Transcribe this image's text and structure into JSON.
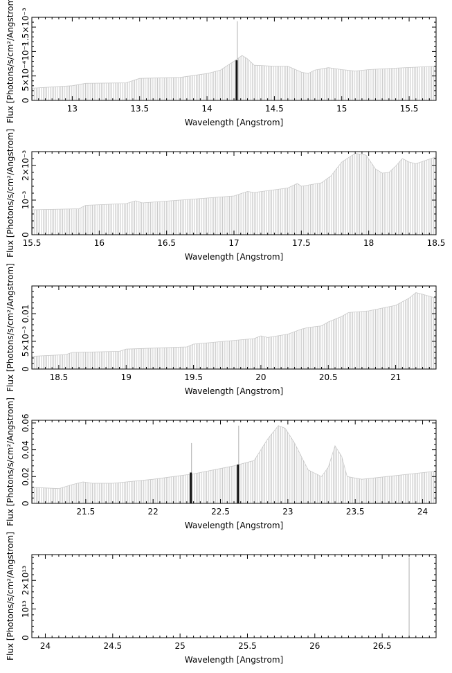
{
  "chart_data": [
    {
      "type": "bar",
      "xlabel": "Wavelength [Angstrom]",
      "ylabel": "Flux [Photons/s/cm²/Angstrom]",
      "xlim": [
        12.7,
        15.7
      ],
      "ylim": [
        0,
        0.0017
      ],
      "xticks": [
        {
          "v": 13,
          "label": "13"
        },
        {
          "v": 13.5,
          "label": "13.5"
        },
        {
          "v": 14,
          "label": "14"
        },
        {
          "v": 14.5,
          "label": "14.5"
        },
        {
          "v": 15,
          "label": "15"
        },
        {
          "v": 15.5,
          "label": "15.5"
        }
      ],
      "yticks": [
        {
          "v": 0,
          "label": "0"
        },
        {
          "v": 0.0005,
          "label": "5×10⁻⁴"
        },
        {
          "v": 0.001,
          "label": "10⁻³"
        },
        {
          "v": 0.0015,
          "label": "1.5×10⁻³"
        }
      ],
      "envelope": [
        [
          12.7,
          0.00025
        ],
        [
          13.0,
          0.0003
        ],
        [
          13.1,
          0.00035
        ],
        [
          13.4,
          0.00036
        ],
        [
          13.5,
          0.00045
        ],
        [
          13.8,
          0.00047
        ],
        [
          14.0,
          0.00055
        ],
        [
          14.1,
          0.00062
        ],
        [
          14.2,
          0.0008
        ],
        [
          14.26,
          0.00092
        ],
        [
          14.3,
          0.00085
        ],
        [
          14.35,
          0.00072
        ],
        [
          14.5,
          0.0007
        ],
        [
          14.6,
          0.0007
        ],
        [
          14.7,
          0.00058
        ],
        [
          14.75,
          0.00055
        ],
        [
          14.8,
          0.00062
        ],
        [
          14.9,
          0.00067
        ],
        [
          15.0,
          0.00063
        ],
        [
          15.1,
          0.0006
        ],
        [
          15.2,
          0.00063
        ],
        [
          15.4,
          0.00066
        ],
        [
          15.7,
          0.0007
        ]
      ],
      "highlights": [
        {
          "x": 14.22,
          "value": 0.00082,
          "peak": 0.00162
        }
      ]
    },
    {
      "type": "bar",
      "xlabel": "Wavelength [Angstrom]",
      "ylabel": "Flux [Photons/s/cm²/Angstrom]",
      "xlim": [
        15.5,
        18.5
      ],
      "ylim": [
        0,
        0.0024
      ],
      "xticks": [
        {
          "v": 15.5,
          "label": "15.5"
        },
        {
          "v": 16,
          "label": "16"
        },
        {
          "v": 16.5,
          "label": "16.5"
        },
        {
          "v": 17,
          "label": "17"
        },
        {
          "v": 17.5,
          "label": "17.5"
        },
        {
          "v": 18,
          "label": "18"
        },
        {
          "v": 18.5,
          "label": "18.5"
        }
      ],
      "yticks": [
        {
          "v": 0,
          "label": "0"
        },
        {
          "v": 0.001,
          "label": "10⁻³"
        },
        {
          "v": 0.002,
          "label": "2×10⁻³"
        }
      ],
      "envelope": [
        [
          15.5,
          0.00072
        ],
        [
          15.85,
          0.00075
        ],
        [
          15.9,
          0.00085
        ],
        [
          16.2,
          0.0009
        ],
        [
          16.27,
          0.00098
        ],
        [
          16.32,
          0.00092
        ],
        [
          16.6,
          0.001
        ],
        [
          17.0,
          0.00112
        ],
        [
          17.1,
          0.00125
        ],
        [
          17.15,
          0.00122
        ],
        [
          17.4,
          0.00135
        ],
        [
          17.47,
          0.00148
        ],
        [
          17.5,
          0.0014
        ],
        [
          17.65,
          0.0015
        ],
        [
          17.72,
          0.0017
        ],
        [
          17.8,
          0.0021
        ],
        [
          17.9,
          0.00235
        ],
        [
          17.98,
          0.0023
        ],
        [
          18.05,
          0.0019
        ],
        [
          18.1,
          0.00178
        ],
        [
          18.15,
          0.0018
        ],
        [
          18.2,
          0.00198
        ],
        [
          18.25,
          0.0022
        ],
        [
          18.3,
          0.0021
        ],
        [
          18.35,
          0.00205
        ],
        [
          18.5,
          0.00225
        ]
      ],
      "highlights": []
    },
    {
      "type": "bar",
      "xlabel": "Wavelength [Angstrom]",
      "ylabel": "Flux [Photons/s/cm²/Angstrom]",
      "xlim": [
        18.3,
        21.3
      ],
      "ylim": [
        0,
        0.015
      ],
      "xticks": [
        {
          "v": 18.5,
          "label": "18.5"
        },
        {
          "v": 19,
          "label": "19"
        },
        {
          "v": 19.5,
          "label": "19.5"
        },
        {
          "v": 20,
          "label": "20"
        },
        {
          "v": 20.5,
          "label": "20.5"
        },
        {
          "v": 21,
          "label": "21"
        }
      ],
      "yticks": [
        {
          "v": 0,
          "label": "0"
        },
        {
          "v": 0.005,
          "label": "5×10⁻³"
        },
        {
          "v": 0.01,
          "label": "0.01"
        }
      ],
      "envelope": [
        [
          18.3,
          0.0023
        ],
        [
          18.55,
          0.0026
        ],
        [
          18.6,
          0.003
        ],
        [
          18.95,
          0.0032
        ],
        [
          19.0,
          0.0036
        ],
        [
          19.45,
          0.004
        ],
        [
          19.5,
          0.0045
        ],
        [
          19.95,
          0.0055
        ],
        [
          20.0,
          0.006
        ],
        [
          20.05,
          0.0057
        ],
        [
          20.2,
          0.0063
        ],
        [
          20.3,
          0.0072
        ],
        [
          20.35,
          0.0075
        ],
        [
          20.45,
          0.0078
        ],
        [
          20.5,
          0.0085
        ],
        [
          20.6,
          0.0095
        ],
        [
          20.65,
          0.0102
        ],
        [
          20.8,
          0.0105
        ],
        [
          21.0,
          0.0115
        ],
        [
          21.1,
          0.0128
        ],
        [
          21.15,
          0.0138
        ],
        [
          21.2,
          0.0135
        ],
        [
          21.3,
          0.0128
        ]
      ],
      "highlights": []
    },
    {
      "type": "bar",
      "xlabel": "Wavelength [Angstrom]",
      "ylabel": "Flux [Photons/s/cm²/Angstrom]",
      "xlim": [
        21.1,
        24.1
      ],
      "ylim": [
        0,
        0.062
      ],
      "xticks": [
        {
          "v": 21.5,
          "label": "21.5"
        },
        {
          "v": 22,
          "label": "22"
        },
        {
          "v": 22.5,
          "label": "22.5"
        },
        {
          "v": 23,
          "label": "23"
        },
        {
          "v": 23.5,
          "label": "23.5"
        },
        {
          "v": 24,
          "label": "24"
        }
      ],
      "yticks": [
        {
          "v": 0,
          "label": "0"
        },
        {
          "v": 0.02,
          "label": "0.02"
        },
        {
          "v": 0.04,
          "label": "0.04"
        },
        {
          "v": 0.06,
          "label": "0.06"
        }
      ],
      "envelope": [
        [
          21.1,
          0.012
        ],
        [
          21.3,
          0.011
        ],
        [
          21.4,
          0.014
        ],
        [
          21.48,
          0.016
        ],
        [
          21.55,
          0.015
        ],
        [
          21.7,
          0.015
        ],
        [
          22.0,
          0.018
        ],
        [
          22.3,
          0.022
        ],
        [
          22.6,
          0.028
        ],
        [
          22.75,
          0.032
        ],
        [
          22.8,
          0.04
        ],
        [
          22.85,
          0.048
        ],
        [
          22.93,
          0.058
        ],
        [
          22.98,
          0.056
        ],
        [
          23.05,
          0.045
        ],
        [
          23.15,
          0.025
        ],
        [
          23.25,
          0.02
        ],
        [
          23.3,
          0.027
        ],
        [
          23.35,
          0.043
        ],
        [
          23.4,
          0.035
        ],
        [
          23.44,
          0.02
        ],
        [
          23.55,
          0.018
        ],
        [
          24.1,
          0.024
        ]
      ],
      "highlights": [
        {
          "x": 22.28,
          "value": 0.023,
          "peak": 0.045
        },
        {
          "x": 22.63,
          "value": 0.029,
          "peak": 0.058
        }
      ]
    },
    {
      "type": "bar",
      "xlabel": "Wavelength [Angstrom]",
      "ylabel": "Flux [Photons/s/cm²/Angstrom]",
      "xlim": [
        23.9,
        26.9
      ],
      "ylim": [
        0,
        29000000000000
      ],
      "xticks": [
        {
          "v": 24,
          "label": "24"
        },
        {
          "v": 24.5,
          "label": "24.5"
        },
        {
          "v": 25,
          "label": "25"
        },
        {
          "v": 25.5,
          "label": "25.5"
        },
        {
          "v": 26,
          "label": "26"
        },
        {
          "v": 26.5,
          "label": "26.5"
        }
      ],
      "yticks": [
        {
          "v": 0,
          "label": "0"
        },
        {
          "v": 10000000000000,
          "label": "10¹³"
        },
        {
          "v": 20000000000000,
          "label": "2×10¹³"
        }
      ],
      "envelope": [],
      "highlights": [],
      "spikes": [
        {
          "x": 26.7,
          "value": 28000000000000
        }
      ]
    }
  ]
}
